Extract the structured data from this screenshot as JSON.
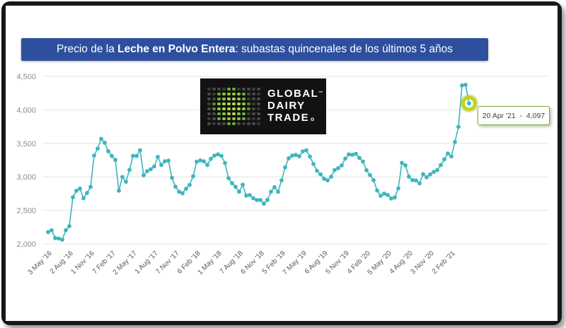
{
  "banner": {
    "text_prefix": "Precio de la ",
    "text_bold": "Leche en Polvo Entera",
    "text_suffix": ": subastas quincenales de los últimos 5 años",
    "bg_color": "#2d4f9e",
    "text_color": "#ffffff"
  },
  "logo": {
    "name": "Global Dairy Trade",
    "line1": "GLOBAL",
    "trademark": "™",
    "line2": "DAIRY",
    "line3": "TRADE",
    "mark": "o",
    "bg_color": "#121212",
    "green": "#8dc63f"
  },
  "tooltip": {
    "text": "20 Apr '21  -  4,097",
    "border_color": "#7daf3c"
  },
  "chart_data": {
    "type": "line",
    "title": "Precio de la Leche en Polvo Entera: subastas quincenales de los últimos 5 años",
    "line_color": "#3db5bd",
    "marker_color": "#3db5bd",
    "grid": true,
    "legend": "none",
    "ylim": [
      2000,
      4500
    ],
    "y_tick_values": [
      2000,
      2500,
      3000,
      3500,
      4000,
      4500
    ],
    "y_tick_labels": [
      "2,000",
      "2,500",
      "3,000",
      "3,500",
      "4,000",
      "4,500"
    ],
    "x_tick_every": 6,
    "x_tick_labels": [
      "3 May '16",
      "2 Aug '16",
      "1 Nov '16",
      "7 Feb '17",
      "2 May '17",
      "1 Aug '17",
      "7 Nov '17",
      "6 Feb '18",
      "1 May '18",
      "7 Aug '18",
      "6 Nov '18",
      "5 Feb '19",
      "7 May '19",
      "6 Aug '19",
      "5 Nov '19",
      "4 Feb '20",
      "5 May '20",
      "4 Aug '20",
      "3 Nov '20",
      "2 Feb '21"
    ],
    "values": [
      2176,
      2205,
      2086,
      2079,
      2062,
      2205,
      2265,
      2695,
      2793,
      2825,
      2681,
      2760,
      2850,
      3317,
      3423,
      3568,
      3510,
      3383,
      3312,
      3254,
      2794,
      2998,
      2926,
      3104,
      3313,
      3312,
      3398,
      3023,
      3085,
      3114,
      3155,
      3298,
      3178,
      3232,
      3243,
      2986,
      2852,
      2778,
      2755,
      2824,
      2880,
      3010,
      3226,
      3246,
      3232,
      3178,
      3269,
      3317,
      3337,
      3313,
      3207,
      2980,
      2905,
      2851,
      2778,
      2883,
      2720,
      2729,
      2681,
      2654,
      2655,
      2599,
      2657,
      2777,
      2846,
      2777,
      2948,
      3142,
      3277,
      3317,
      3327,
      3307,
      3381,
      3397,
      3303,
      3193,
      3091,
      3039,
      2973,
      2948,
      3002,
      3102,
      3130,
      3172,
      3272,
      3335,
      3330,
      3344,
      3284,
      3229,
      3099,
      3027,
      2952,
      2797,
      2717,
      2750,
      2730,
      2677,
      2693,
      2829,
      3208,
      3172,
      3003,
      2952,
      2946,
      2903,
      3041,
      2994,
      3037,
      3074,
      3100,
      3176,
      3263,
      3349,
      3306,
      3520,
      3746,
      4364,
      4375,
      4097
    ],
    "highlight_index": 119,
    "highlight_value_label": "4,097",
    "highlight_date_label": "20 Apr '21",
    "highlight_color": "#bfd327",
    "annotation": "20 Apr '21  -  4,097"
  }
}
